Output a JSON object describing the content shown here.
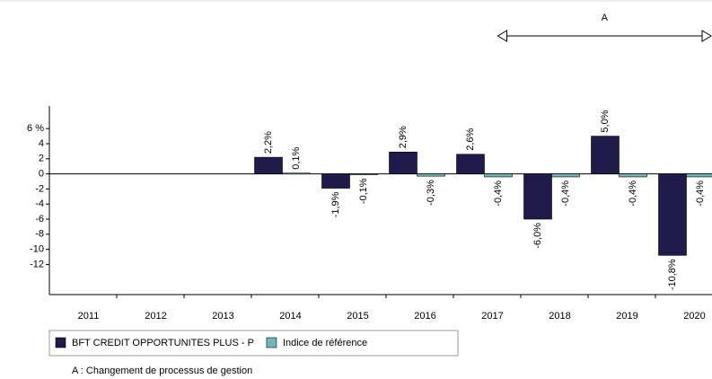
{
  "chart_data": {
    "type": "bar",
    "categories": [
      "2011",
      "2012",
      "2013",
      "2014",
      "2015",
      "2016",
      "2017",
      "2018",
      "2019",
      "2020"
    ],
    "series": [
      {
        "name": "BFT CREDIT OPPORTUNITES PLUS - P",
        "color": "#1f1a4a",
        "values": [
          null,
          null,
          null,
          2.2,
          -1.9,
          2.9,
          2.6,
          -6.0,
          5.0,
          -10.8
        ],
        "value_labels": [
          null,
          null,
          null,
          "2,2%",
          "-1,9%",
          "2,9%",
          "2,6%",
          "-6,0%",
          "5,0%",
          "-10,8%"
        ]
      },
      {
        "name": "Indice de référence",
        "color": "#6fb8b8",
        "values": [
          null,
          null,
          null,
          0.1,
          -0.1,
          -0.3,
          -0.4,
          -0.4,
          -0.4,
          -0.4
        ],
        "value_labels": [
          null,
          null,
          null,
          "0,1%",
          "-0,1%",
          "-0,3%",
          "-0,4%",
          "-0,4%",
          "-0,4%",
          "-0,4%"
        ]
      }
    ],
    "ylim": [
      -16,
      9
    ],
    "yticks": [
      {
        "value": 6,
        "label": "6 %"
      },
      4,
      2,
      0,
      -2,
      -4,
      -6,
      -8,
      -10,
      -12
    ],
    "annotations": [
      {
        "text": "A",
        "from": "2017",
        "to": "2020"
      }
    ],
    "footnote": "A : Changement de processus de gestion"
  }
}
